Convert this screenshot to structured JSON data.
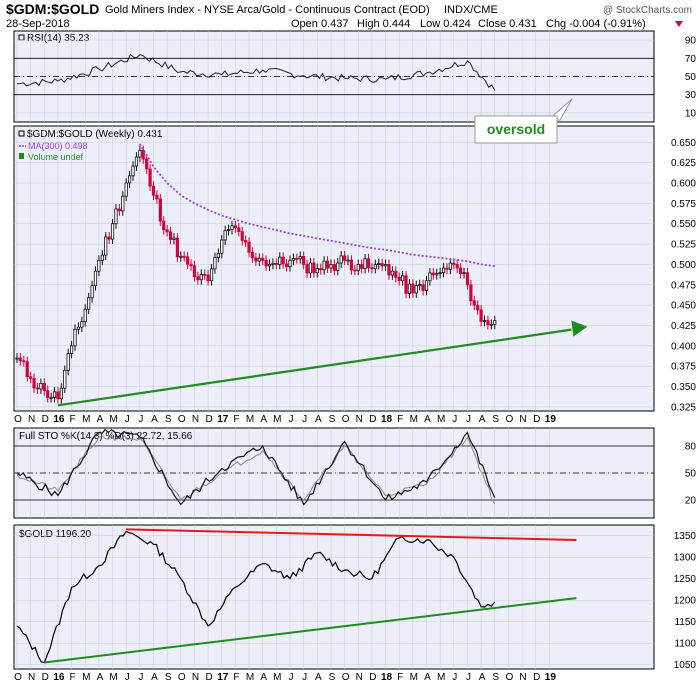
{
  "header": {
    "symbol": "$GDM:$GOLD",
    "description": "Gold Miners Index - NYSE Arca/Gold - Continuous Contract (EOD)",
    "exchange": "INDX/CME",
    "date": "28-Sep-2018",
    "open": "Open 0.437",
    "high": "High 0.444",
    "low": "Low 0.424",
    "close": "Close 0.431",
    "change": "Chg -0.004 (-0.91%)",
    "watermark": "@ StockCharts.com"
  },
  "colors": {
    "panel_bg": "#eceef9",
    "up": "#111111",
    "down": "#d2003c",
    "ma": "#9e3ce6",
    "trend_green": "#1e8c1e",
    "trend_red": "#e21b1b",
    "gridline": "#c8cad6"
  },
  "x_labels": [
    "O",
    "N",
    "D",
    "16",
    "F",
    "M",
    "A",
    "M",
    "J",
    "J",
    "A",
    "S",
    "O",
    "N",
    "D",
    "17",
    "F",
    "M",
    "A",
    "M",
    "J",
    "J",
    "A",
    "S",
    "O",
    "N",
    "D",
    "18",
    "F",
    "M",
    "A",
    "M",
    "J",
    "J",
    "A",
    "S",
    "O",
    "N",
    "D",
    "19"
  ],
  "panels": {
    "rsi": {
      "title": "RSI(14) 35.23",
      "ticks": [
        "10",
        "30",
        "50",
        "70",
        "90"
      ],
      "annotation": "oversold"
    },
    "price": {
      "title": "$GDM:$GOLD (Weekly) 0.431",
      "legend_ma": "MA(300) 0.498",
      "legend_volume": "Volume undef",
      "ticks": [
        "0.325",
        "0.350",
        "0.375",
        "0.400",
        "0.425",
        "0.450",
        "0.475",
        "0.500",
        "0.525",
        "0.550",
        "0.575",
        "0.600",
        "0.625",
        "0.650"
      ]
    },
    "sto": {
      "title": "Full STO %K(14,3) %D(3) 22.72, 15.66",
      "ticks": [
        "20",
        "50",
        "80"
      ]
    },
    "gold": {
      "title": "$GOLD 1196.20",
      "ticks": [
        "1050",
        "1100",
        "1150",
        "1200",
        "1250",
        "1300",
        "1350"
      ]
    }
  },
  "chart_data": [
    {
      "type": "line",
      "title": "RSI(14) 35.23",
      "ylim": [
        0,
        100
      ],
      "reference_lines": [
        30,
        50,
        70
      ],
      "x": [
        "2015-10",
        "2016-01",
        "2016-04",
        "2016-07",
        "2016-10",
        "2017-01",
        "2017-04",
        "2017-07",
        "2017-10",
        "2018-01",
        "2018-04",
        "2018-07",
        "2018-09"
      ],
      "series": [
        {
          "values": [
            42,
            45,
            58,
            74,
            55,
            52,
            57,
            51,
            48,
            47,
            54,
            67,
            35
          ]
        }
      ]
    },
    {
      "type": "candlestick",
      "title": "$GDM:$GOLD (Weekly) 0.431",
      "ylim": [
        0.32,
        0.67
      ],
      "x": [
        "2015-10",
        "2015-11",
        "2015-12",
        "2016-01",
        "2016-02",
        "2016-03",
        "2016-04",
        "2016-05",
        "2016-06",
        "2016-07",
        "2016-08",
        "2016-09",
        "2016-10",
        "2016-11",
        "2016-12",
        "2017-01",
        "2017-02",
        "2017-03",
        "2017-04",
        "2017-05",
        "2017-06",
        "2017-07",
        "2017-08",
        "2017-09",
        "2017-10",
        "2017-11",
        "2017-12",
        "2018-01",
        "2018-02",
        "2018-03",
        "2018-04",
        "2018-05",
        "2018-06",
        "2018-07",
        "2018-08",
        "2018-09"
      ],
      "series": [
        {
          "name": "$GDM:$GOLD (Weekly)",
          "values": [
            0.385,
            0.36,
            0.345,
            0.335,
            0.4,
            0.445,
            0.505,
            0.55,
            0.6,
            0.64,
            0.585,
            0.54,
            0.51,
            0.485,
            0.48,
            0.53,
            0.545,
            0.515,
            0.505,
            0.5,
            0.505,
            0.5,
            0.495,
            0.5,
            0.505,
            0.5,
            0.495,
            0.5,
            0.48,
            0.465,
            0.48,
            0.49,
            0.5,
            0.475,
            0.43,
            0.431
          ]
        },
        {
          "name": "MA(300) 0.498",
          "values": [
            null,
            null,
            null,
            null,
            null,
            null,
            null,
            null,
            null,
            0.648,
            0.62,
            0.6,
            0.585,
            0.575,
            0.567,
            0.56,
            0.555,
            0.55,
            0.546,
            0.542,
            0.538,
            0.535,
            0.532,
            0.529,
            0.526,
            0.523,
            0.52,
            0.518,
            0.515,
            0.512,
            0.51,
            0.508,
            0.506,
            0.504,
            0.5,
            0.498
          ]
        }
      ],
      "trendline": {
        "from": [
          "2016-01",
          0.327
        ],
        "to": [
          "2019-01",
          0.415
        ]
      }
    },
    {
      "type": "line",
      "title": "Full STO %K(14,3) %D(3) 22.72, 15.66",
      "ylim": [
        0,
        100
      ],
      "reference_lines": [
        20,
        50,
        80
      ],
      "x": [
        "2015-10",
        "2016-01",
        "2016-04",
        "2016-07",
        "2016-10",
        "2017-01",
        "2017-04",
        "2017-07",
        "2017-10",
        "2018-01",
        "2018-04",
        "2018-07",
        "2018-09"
      ],
      "series": [
        {
          "name": "%K",
          "values": [
            50,
            25,
            95,
            90,
            15,
            55,
            80,
            15,
            85,
            20,
            40,
            95,
            22.72
          ]
        },
        {
          "name": "%D",
          "values": [
            48,
            30,
            90,
            88,
            20,
            50,
            75,
            20,
            80,
            25,
            38,
            90,
            15.66
          ]
        }
      ]
    },
    {
      "type": "line",
      "title": "$GOLD 1196.20",
      "ylim": [
        1040,
        1375
      ],
      "x": [
        "2015-10",
        "2015-12",
        "2016-02",
        "2016-04",
        "2016-06",
        "2016-08",
        "2016-10",
        "2016-12",
        "2017-02",
        "2017-04",
        "2017-06",
        "2017-08",
        "2017-10",
        "2017-12",
        "2018-02",
        "2018-04",
        "2018-06",
        "2018-08",
        "2018-09"
      ],
      "series": [
        {
          "values": [
            1140,
            1055,
            1230,
            1280,
            1360,
            1330,
            1250,
            1140,
            1230,
            1285,
            1250,
            1310,
            1270,
            1250,
            1345,
            1340,
            1300,
            1185,
            1196.2
          ]
        }
      ],
      "trendlines": [
        {
          "color": "red",
          "from": [
            "2016-06",
            1365
          ],
          "to": [
            "2019-01",
            1340
          ]
        },
        {
          "color": "green",
          "from": [
            "2015-12",
            1055
          ],
          "to": [
            "2019-01",
            1205
          ]
        }
      ]
    }
  ]
}
